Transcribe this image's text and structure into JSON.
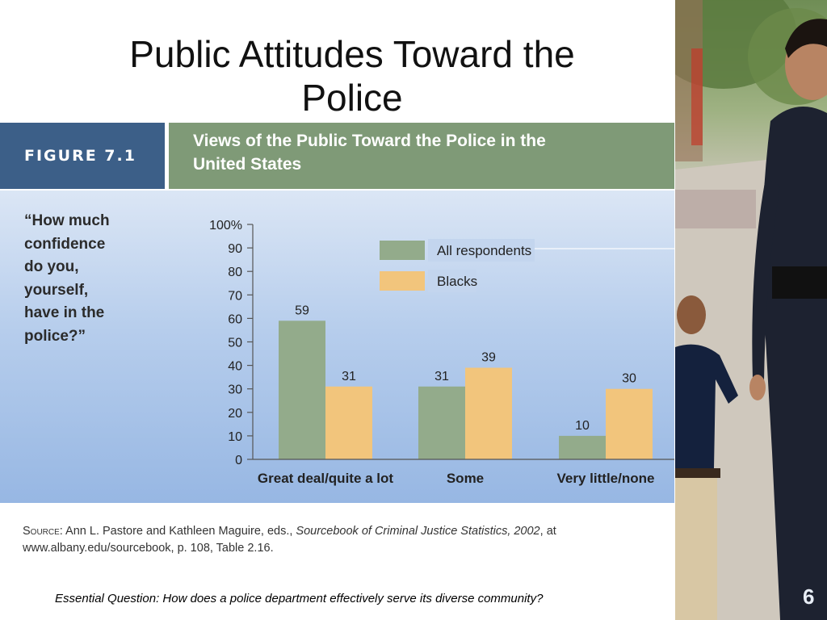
{
  "slide": {
    "title_line1": "Public Attitudes Toward the",
    "title_line2": "Police",
    "page_number": "6",
    "essential_question": "Essential Question: How does a police department effectively serve its diverse community?"
  },
  "figure": {
    "label": "FIGURE 7.1",
    "title_line1": "Views of the Public Toward the Police in the",
    "title_line2": "United States",
    "question_lines": [
      "“How much",
      "confidence",
      "do you,",
      "yourself,",
      "have in the",
      "police?”"
    ],
    "source_prefix": "Source",
    "source_authors": ": Ann L. Pastore and Kathleen Maguire, eds., ",
    "source_book": "Sourcebook of Criminal Justice Statistics, 2002",
    "source_tail": ", at",
    "source_line2": "www.albany.edu/sourcebook, p. 108, Table 2.16."
  },
  "colors": {
    "all_respondents": "#93ab8b",
    "blacks": "#f2c57c",
    "axis": "#555555"
  },
  "chart_data": {
    "type": "bar",
    "categories": [
      "Great deal/quite a lot",
      "Some",
      "Very little/none"
    ],
    "series": [
      {
        "name": "All respondents",
        "values": [
          59,
          31,
          10
        ]
      },
      {
        "name": "Blacks",
        "values": [
          31,
          39,
          30
        ]
      }
    ],
    "yticks": [
      "100%",
      "90",
      "80",
      "70",
      "60",
      "50",
      "40",
      "30",
      "20",
      "10",
      "0"
    ],
    "ylim": [
      0,
      100
    ],
    "grid": false,
    "legend_position": "top-right"
  },
  "photo": {
    "description_icon": "police-officer-with-child-photo"
  }
}
